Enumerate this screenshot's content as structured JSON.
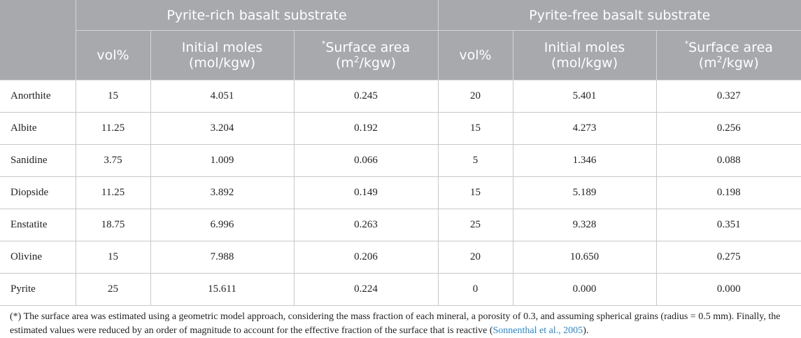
{
  "table": {
    "group_headers": [
      "Pyrite-rich basalt substrate",
      "Pyrite-free basalt substrate"
    ],
    "sub_headers": {
      "vol": "vol%",
      "moles_line1": "Initial moles",
      "moles_line2": "(mol/kgw)",
      "area_star": "*",
      "area_line1": "Surface area",
      "area_line2_pre": "(m",
      "area_line2_sup": "2",
      "area_line2_post": "/kgw)"
    },
    "rows": [
      {
        "mineral": "Anorthite",
        "rich": {
          "vol": "15",
          "moles": "4.051",
          "area": "0.245"
        },
        "free": {
          "vol": "20",
          "moles": "5.401",
          "area": "0.327"
        }
      },
      {
        "mineral": "Albite",
        "rich": {
          "vol": "11.25",
          "moles": "3.204",
          "area": "0.192"
        },
        "free": {
          "vol": "15",
          "moles": "4.273",
          "area": "0.256"
        }
      },
      {
        "mineral": "Sanidine",
        "rich": {
          "vol": "3.75",
          "moles": "1.009",
          "area": "0.066"
        },
        "free": {
          "vol": "5",
          "moles": "1.346",
          "area": "0.088"
        }
      },
      {
        "mineral": "Diopside",
        "rich": {
          "vol": "11.25",
          "moles": "3.892",
          "area": "0.149"
        },
        "free": {
          "vol": "15",
          "moles": "5.189",
          "area": "0.198"
        }
      },
      {
        "mineral": "Enstatite",
        "rich": {
          "vol": "18.75",
          "moles": "6.996",
          "area": "0.263"
        },
        "free": {
          "vol": "25",
          "moles": "9.328",
          "area": "0.351"
        }
      },
      {
        "mineral": "Olivine",
        "rich": {
          "vol": "15",
          "moles": "7.988",
          "area": "0.206"
        },
        "free": {
          "vol": "20",
          "moles": "10.650",
          "area": "0.275"
        }
      },
      {
        "mineral": "Pyrite",
        "rich": {
          "vol": "25",
          "moles": "15.611",
          "area": "0.224"
        },
        "free": {
          "vol": "0",
          "moles": "0.000",
          "area": "0.000"
        }
      }
    ]
  },
  "footnote": {
    "text": "(*) The surface area was estimated using a geometric model approach, considering the mass fraction of each mineral, a porosity of 0.3, and assuming spherical grains (radius = 0.5 mm). Finally, the estimated values were reduced by an order of magnitude to account for the effective fraction of the surface that is reactive (",
    "citation": "Sonnenthal et al., 2005",
    "end": ")."
  },
  "colors": {
    "header_bg": "#a7a9ac",
    "header_text": "#ffffff",
    "citation_link": "#2a86c4"
  }
}
